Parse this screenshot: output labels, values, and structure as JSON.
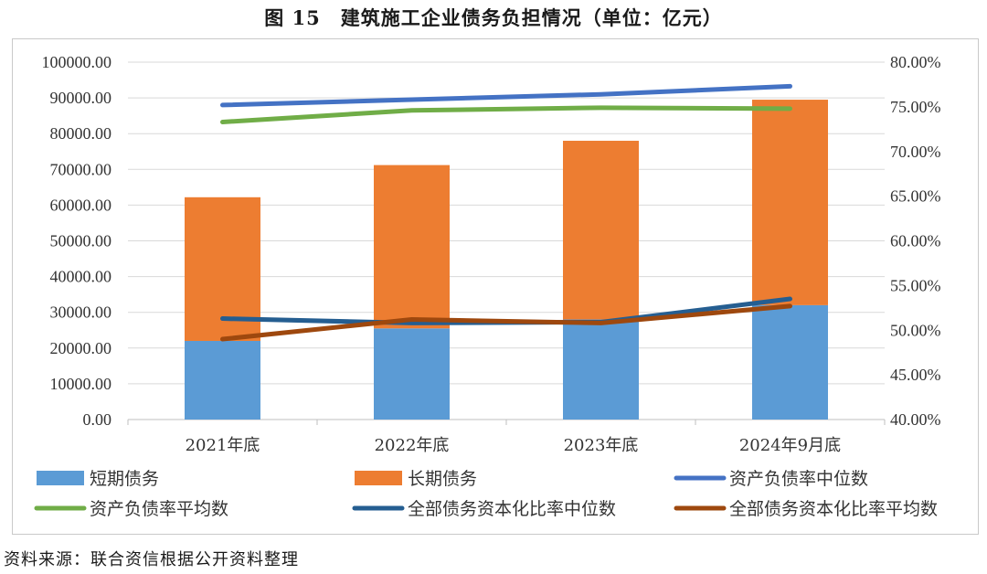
{
  "title": "图 15　建筑施工企业债务负担情况（单位：亿元）",
  "source": "资料来源：联合资信根据公开资料整理",
  "chart_data": {
    "type": "bar",
    "stacked": true,
    "categories": [
      "2021年底",
      "2022年底",
      "2023年底",
      "2024年9月底"
    ],
    "left_axis": {
      "ylim": [
        0,
        100000
      ],
      "ticks": [
        "0.00",
        "10000.00",
        "20000.00",
        "30000.00",
        "40000.00",
        "50000.00",
        "60000.00",
        "70000.00",
        "80000.00",
        "90000.00",
        "100000.00"
      ]
    },
    "right_axis": {
      "ylim": [
        40,
        80
      ],
      "ticks": [
        "40.00%",
        "45.00%",
        "50.00%",
        "55.00%",
        "60.00%",
        "65.00%",
        "70.00%",
        "75.00%",
        "80.00%"
      ]
    },
    "bar_series": [
      {
        "name": "短期债务",
        "color": "#5b9bd5",
        "values": [
          22000,
          25500,
          28000,
          32000
        ]
      },
      {
        "name": "长期债务",
        "color": "#ed7d31",
        "values": [
          40200,
          45700,
          50000,
          57500
        ]
      }
    ],
    "line_series": [
      {
        "name": "资产负债率中位数",
        "color": "#4472c4",
        "values": [
          75.2,
          75.8,
          76.4,
          77.3
        ]
      },
      {
        "name": "资产负债率平均数",
        "color": "#70ad47",
        "values": [
          73.3,
          74.6,
          74.9,
          74.8
        ]
      },
      {
        "name": "全部债务资本化比率中位数",
        "color": "#255e91",
        "values": [
          51.3,
          50.8,
          50.9,
          53.5
        ]
      },
      {
        "name": "全部债务资本化比率平均数",
        "color": "#9e480e",
        "values": [
          49.0,
          51.2,
          50.8,
          52.7
        ]
      }
    ],
    "grid": true,
    "legend_position": "bottom"
  }
}
